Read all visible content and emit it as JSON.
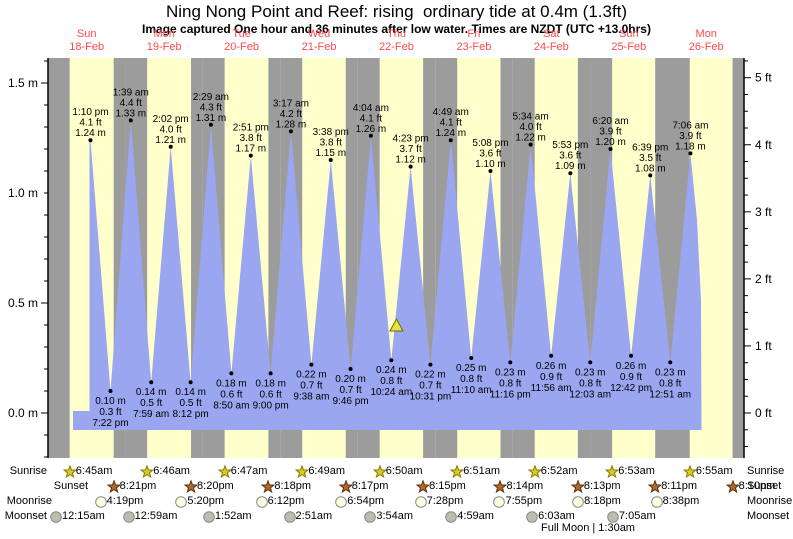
{
  "chart_data": {
    "type": "area",
    "title": "Ning Nong Point and Reef: rising  ordinary tide at 0.4m (1.3ft)",
    "subtitle": "Image captured One hour and 36 minutes after low water. Times are NZDT (UTC +13.0hrs)",
    "colors": {
      "day_band": "#FFFFCC",
      "night_band": "#9C9C9C",
      "tide_fill": "#9AA6EF",
      "date_text": "#FF4A4A",
      "marker_fill": "#E6E048",
      "marker_stroke": "#6B6B00"
    },
    "days": [
      {
        "name": "Sun",
        "date": "18-Feb"
      },
      {
        "name": "Mon",
        "date": "19-Feb"
      },
      {
        "name": "Tue",
        "date": "20-Feb"
      },
      {
        "name": "Wed",
        "date": "21-Feb"
      },
      {
        "name": "Thu",
        "date": "22-Feb"
      },
      {
        "name": "Fri",
        "date": "23-Feb"
      },
      {
        "name": "Sat",
        "date": "24-Feb"
      },
      {
        "name": "Sun",
        "date": "25-Feb"
      },
      {
        "name": "Mon",
        "date": "26-Feb"
      }
    ],
    "y_axis_left": {
      "unit": "m",
      "tick_labels": [
        "1.5 m",
        "1.0 m",
        "0.5 m",
        "0.0 m"
      ],
      "major_values": [
        1.5,
        1.0,
        0.5,
        0.0
      ],
      "minor_step": 0.1
    },
    "y_axis_right": {
      "unit": "ft",
      "tick_labels": [
        "5 ft",
        "4 ft",
        "3 ft",
        "2 ft",
        "1 ft",
        "0 ft"
      ],
      "major_values": [
        5,
        4,
        3,
        2,
        1,
        0
      ],
      "minor_step": 0.25
    },
    "high_tides": [
      {
        "day": 0,
        "hour": 13.17,
        "time": "1:10 pm",
        "height_ft": 4.1,
        "height_m": 1.24
      },
      {
        "day": 1,
        "hour": 1.65,
        "time": "1:39 am",
        "height_ft": 4.4,
        "height_m": 1.33
      },
      {
        "day": 1,
        "hour": 14.03,
        "time": "2:02 pm",
        "height_ft": 4.0,
        "height_m": 1.21
      },
      {
        "day": 2,
        "hour": 2.48,
        "time": "2:29 am",
        "height_ft": 4.3,
        "height_m": 1.31
      },
      {
        "day": 2,
        "hour": 14.85,
        "time": "2:51 pm",
        "height_ft": 3.8,
        "height_m": 1.17
      },
      {
        "day": 3,
        "hour": 3.28,
        "time": "3:17 am",
        "height_ft": 4.2,
        "height_m": 1.28
      },
      {
        "day": 3,
        "hour": 15.63,
        "time": "3:38 pm",
        "height_ft": 3.8,
        "height_m": 1.15
      },
      {
        "day": 4,
        "hour": 4.07,
        "time": "4:04 am",
        "height_ft": 4.1,
        "height_m": 1.26
      },
      {
        "day": 4,
        "hour": 16.38,
        "time": "4:23 pm",
        "height_ft": 3.7,
        "height_m": 1.12
      },
      {
        "day": 5,
        "hour": 4.82,
        "time": "4:49 am",
        "height_ft": 4.1,
        "height_m": 1.24
      },
      {
        "day": 5,
        "hour": 17.13,
        "time": "5:08 pm",
        "height_ft": 3.6,
        "height_m": 1.1
      },
      {
        "day": 6,
        "hour": 5.57,
        "time": "5:34 am",
        "height_ft": 4.0,
        "height_m": 1.22
      },
      {
        "day": 6,
        "hour": 17.88,
        "time": "5:53 pm",
        "height_ft": 3.6,
        "height_m": 1.09
      },
      {
        "day": 7,
        "hour": 6.33,
        "time": "6:20 am",
        "height_ft": 3.9,
        "height_m": 1.2
      },
      {
        "day": 7,
        "hour": 18.65,
        "time": "6:39 pm",
        "height_ft": 3.5,
        "height_m": 1.08
      },
      {
        "day": 8,
        "hour": 7.1,
        "time": "7:06 am",
        "height_ft": 3.9,
        "height_m": 1.18
      }
    ],
    "low_tides": [
      {
        "day": 0,
        "hour": 19.37,
        "time": "7:22 pm",
        "height_ft": 0.3,
        "height_m": 0.1
      },
      {
        "day": 1,
        "hour": 7.98,
        "time": "7:59 am",
        "height_ft": 0.5,
        "height_m": 0.14
      },
      {
        "day": 1,
        "hour": 20.2,
        "time": "8:12 pm",
        "height_ft": 0.5,
        "height_m": 0.14
      },
      {
        "day": 2,
        "hour": 8.83,
        "time": "8:50 am",
        "height_ft": 0.6,
        "height_m": 0.18
      },
      {
        "day": 2,
        "hour": 21.0,
        "time": "9:00 pm",
        "height_ft": 0.6,
        "height_m": 0.18
      },
      {
        "day": 3,
        "hour": 9.63,
        "time": "9:38 am",
        "height_ft": 0.7,
        "height_m": 0.22
      },
      {
        "day": 3,
        "hour": 21.77,
        "time": "9:46 pm",
        "height_ft": 0.7,
        "height_m": 0.2
      },
      {
        "day": 4,
        "hour": 10.4,
        "time": "10:24 am",
        "height_ft": 0.8,
        "height_m": 0.24
      },
      {
        "day": 4,
        "hour": 22.52,
        "time": "10:31 pm",
        "height_ft": 0.7,
        "height_m": 0.22
      },
      {
        "day": 5,
        "hour": 11.17,
        "time": "11:10 am",
        "height_ft": 0.8,
        "height_m": 0.25
      },
      {
        "day": 5,
        "hour": 23.27,
        "time": "11:16 pm",
        "height_ft": 0.8,
        "height_m": 0.23
      },
      {
        "day": 6,
        "hour": 11.93,
        "time": "11:56 am",
        "height_ft": 0.9,
        "height_m": 0.26
      },
      {
        "day": 7,
        "hour": 0.05,
        "time": "12:03 am",
        "height_ft": 0.8,
        "height_m": 0.23
      },
      {
        "day": 7,
        "hour": 12.7,
        "time": "12:42 pm",
        "height_ft": 0.9,
        "height_m": 0.26
      },
      {
        "day": 8,
        "hour": 0.85,
        "time": "12:51 am",
        "height_ft": 0.8,
        "height_m": 0.23
      }
    ],
    "current_marker": {
      "day": 4,
      "hour": 12.0,
      "height_m": 0.4
    },
    "astro": {
      "rows": [
        {
          "label": "Sunrise",
          "icon": "sunrise-icon",
          "events": [
            {
              "day": 0,
              "hour": 6.75,
              "time": "6:45am"
            },
            {
              "day": 1,
              "hour": 6.77,
              "time": "6:46am"
            },
            {
              "day": 2,
              "hour": 6.78,
              "time": "6:47am"
            },
            {
              "day": 3,
              "hour": 6.82,
              "time": "6:49am"
            },
            {
              "day": 4,
              "hour": 6.83,
              "time": "6:50am"
            },
            {
              "day": 5,
              "hour": 6.85,
              "time": "6:51am"
            },
            {
              "day": 6,
              "hour": 6.87,
              "time": "6:52am"
            },
            {
              "day": 7,
              "hour": 6.88,
              "time": "6:53am"
            },
            {
              "day": 8,
              "hour": 6.92,
              "time": "6:55am"
            }
          ]
        },
        {
          "label": "Sunset",
          "icon": "sunset-icon",
          "events": [
            {
              "day": 0,
              "hour": 20.35,
              "time": "8:21pm"
            },
            {
              "day": 1,
              "hour": 20.33,
              "time": "8:20pm"
            },
            {
              "day": 2,
              "hour": 20.3,
              "time": "8:18pm"
            },
            {
              "day": 3,
              "hour": 20.28,
              "time": "8:17pm"
            },
            {
              "day": 4,
              "hour": 20.25,
              "time": "8:15pm"
            },
            {
              "day": 5,
              "hour": 20.23,
              "time": "8:14pm"
            },
            {
              "day": 6,
              "hour": 20.22,
              "time": "8:13pm"
            },
            {
              "day": 7,
              "hour": 20.18,
              "time": "8:11pm"
            },
            {
              "day": 8,
              "hour": 20.17,
              "time": "8:10pm"
            }
          ]
        },
        {
          "label": "Moonrise",
          "icon": "moonrise-icon",
          "events": [
            {
              "day": 0,
              "hour": 16.32,
              "time": "4:19pm"
            },
            {
              "day": 1,
              "hour": 17.33,
              "time": "5:20pm"
            },
            {
              "day": 2,
              "hour": 18.2,
              "time": "6:12pm"
            },
            {
              "day": 3,
              "hour": 18.9,
              "time": "6:54pm"
            },
            {
              "day": 4,
              "hour": 19.47,
              "time": "7:28pm"
            },
            {
              "day": 5,
              "hour": 19.92,
              "time": "7:55pm"
            },
            {
              "day": 6,
              "hour": 20.3,
              "time": "8:18pm"
            },
            {
              "day": 7,
              "hour": 20.63,
              "time": "8:38pm"
            }
          ]
        },
        {
          "label": "Moonset",
          "icon": "moonset-icon",
          "events": [
            {
              "day": 0,
              "hour": 0.25,
              "time": "12:15am"
            },
            {
              "day": 1,
              "hour": 0.98,
              "time": "12:59am"
            },
            {
              "day": 2,
              "hour": 1.87,
              "time": "1:52am"
            },
            {
              "day": 3,
              "hour": 2.85,
              "time": "2:51am"
            },
            {
              "day": 4,
              "hour": 3.9,
              "time": "3:54am"
            },
            {
              "day": 5,
              "hour": 4.98,
              "time": "4:59am"
            },
            {
              "day": 6,
              "hour": 6.05,
              "time": "6:03am"
            },
            {
              "day": 7,
              "hour": 7.08,
              "time": "7:05am"
            }
          ]
        }
      ],
      "footnote": "Full Moon | 1:30am"
    }
  }
}
